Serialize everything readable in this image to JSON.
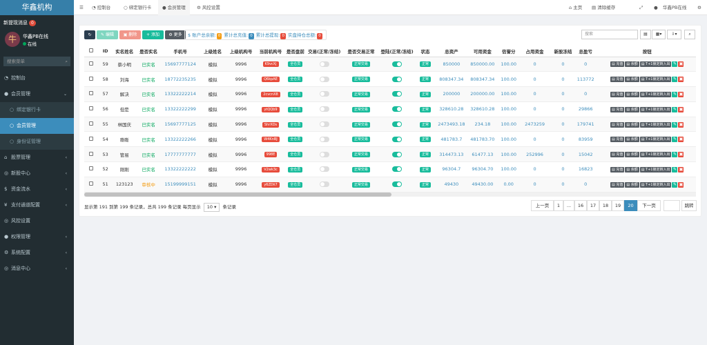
{
  "sidebar": {
    "logo": "华鑫机构",
    "notice": "新提现消息",
    "notice_count": "0",
    "user_name": "华鑫PB在线",
    "user_status": "在线",
    "search_placeholder": "搜索菜单",
    "menu": [
      {
        "label": "控制台",
        "icon": "gauge-icon"
      },
      {
        "label": "会员管理",
        "icon": "user-icon"
      },
      {
        "label": "绑定银行卡",
        "icon": "circle-icon"
      },
      {
        "label": "会员管理",
        "icon": "circle-icon"
      },
      {
        "label": "身份证管理",
        "icon": "circle-icon"
      },
      {
        "label": "股票管理",
        "icon": "bank-icon"
      },
      {
        "label": "新股中心",
        "icon": "circle-icon"
      },
      {
        "label": "资金流水",
        "icon": "dollar-icon"
      },
      {
        "label": "支付通道配置",
        "icon": "yen-icon"
      },
      {
        "label": "风控设置",
        "icon": "circle-icon"
      },
      {
        "label": "权限管理",
        "icon": "group-icon"
      },
      {
        "label": "系统配置",
        "icon": "gear-icon"
      },
      {
        "label": "消息中心",
        "icon": "circle-icon"
      }
    ]
  },
  "header": {
    "tabs": [
      "控制台",
      "绑定银行卡",
      "会员管理",
      "风控设置"
    ],
    "home": "主页",
    "clear_cache": "清除缓存",
    "admin": "华鑫PB在线"
  },
  "toolbar": {
    "edit": "编辑",
    "delete": "删除",
    "add": "添加",
    "more": "更多",
    "summary_label1": "账户总余额:",
    "summary_val1": "0",
    "summary_label2": "累计总充值:",
    "summary_val2": "0",
    "summary_label3": "累计总提现:",
    "summary_val3": "0",
    "summary_label4": "实盘持仓总额:",
    "summary_val4": "0",
    "search_placeholder": "搜索"
  },
  "table": {
    "headers": [
      "ID",
      "实名姓名",
      "是否实名",
      "手机号",
      "上级姓名",
      "上级机构号",
      "当前机构号",
      "是否盘前",
      "交易(正常/冻结)",
      "是否交易正常",
      "登陆(正常/冻结)",
      "状态",
      "总资产",
      "可用资金",
      "信誉分",
      "占用资金",
      "新股冻结",
      "总盈亏",
      "按钮"
    ],
    "rows": [
      {
        "id": "59",
        "name": "蔡小明",
        "verified": "已实名",
        "phone": "15697777124",
        "parent": "模拟",
        "parent_code": "9996",
        "code": "K9vcXj",
        "pre": "全仓员",
        "trade_ok": "正常交易",
        "status": "正常",
        "total": "850000",
        "avail": "850000.00",
        "credit": "100.00",
        "occupied": "0",
        "frozen": "0",
        "pnl": "0",
        "trade_on": false
      },
      {
        "id": "58",
        "name": "刘海",
        "verified": "已实名",
        "phone": "18772235235",
        "parent": "模拟",
        "parent_code": "9996",
        "code": "Q6kpAE",
        "pre": "全仓员",
        "trade_ok": "正常交易",
        "status": "正常",
        "total": "808347.34",
        "avail": "808347.34",
        "credit": "100.00",
        "occupied": "0",
        "frozen": "0",
        "pnl": "113772",
        "trade_on": false
      },
      {
        "id": "57",
        "name": "解决",
        "verified": "已实名",
        "phone": "13322222214",
        "parent": "模拟",
        "parent_code": "9996",
        "code": "2cvcnX8",
        "pre": "全仓员",
        "trade_ok": "正常交易",
        "status": "正常",
        "total": "200000",
        "avail": "200000.00",
        "credit": "100.00",
        "occupied": "0",
        "frozen": "0",
        "pnl": "0",
        "trade_on": false
      },
      {
        "id": "56",
        "name": "但是",
        "verified": "已实名",
        "phone": "13322222299",
        "parent": "模拟",
        "parent_code": "9996",
        "code": "ytQQb9",
        "pre": "全仓员",
        "trade_ok": "正常交易",
        "status": "正常",
        "total": "328610.28",
        "avail": "328610.28",
        "credit": "100.00",
        "occupied": "0",
        "frozen": "0",
        "pnl": "29866",
        "trade_on": false
      },
      {
        "id": "55",
        "name": "林国庆",
        "verified": "已实名",
        "phone": "15697777125",
        "parent": "模拟",
        "parent_code": "9996",
        "code": "ShrXDs",
        "pre": "全仓员",
        "trade_ok": "正常交易",
        "status": "正常",
        "total": "2473493.18",
        "avail": "234.18",
        "credit": "100.00",
        "occupied": "2473259",
        "frozen": "0",
        "pnl": "179741",
        "trade_on": false
      },
      {
        "id": "54",
        "name": "嘶嘶",
        "verified": "已实名",
        "phone": "13322222266",
        "parent": "模拟",
        "parent_code": "9996",
        "code": "W4KnBJ",
        "pre": "全仓员",
        "trade_ok": "正常交易",
        "status": "正常",
        "total": "481783.7",
        "avail": "481783.70",
        "credit": "100.00",
        "occupied": "0",
        "frozen": "0",
        "pnl": "83959",
        "trade_on": false
      },
      {
        "id": "53",
        "name": "管易",
        "verified": "已实名",
        "phone": "17777777777",
        "parent": "模拟",
        "parent_code": "9996",
        "code": "998E",
        "pre": "全仓员",
        "trade_ok": "正常交易",
        "status": "正常",
        "total": "314473.13",
        "avail": "61477.13",
        "credit": "100.00",
        "occupied": "252996",
        "frozen": "0",
        "pnl": "15042",
        "trade_on": false
      },
      {
        "id": "52",
        "name": "刚刚",
        "verified": "已实名",
        "phone": "13322222222",
        "parent": "模拟",
        "parent_code": "9996",
        "code": "V2wk3c",
        "pre": "全仓员",
        "trade_ok": "正常交易",
        "status": "正常",
        "total": "96304.7",
        "avail": "96304.70",
        "credit": "100.00",
        "occupied": "0",
        "frozen": "0",
        "pnl": "16823",
        "trade_on": false
      },
      {
        "id": "51",
        "name": "123123",
        "verified": "审核中",
        "phone": "15199999151",
        "parent": "模拟",
        "parent_code": "9996",
        "code": "y6ZDii7",
        "pre": "全仓员",
        "trade_ok": "正常交易",
        "status": "正常",
        "total": "49430",
        "avail": "49430.00",
        "credit": "0.00",
        "occupied": "0",
        "frozen": "0",
        "pnl": "0",
        "trade_on": false
      }
    ],
    "actions": [
      "充值",
      "余额",
      "T+1锁定转入出"
    ]
  },
  "footer": {
    "info": "显示第 191 到第 199 条记录，总共 199 条记录 每页显示",
    "page_size": "10",
    "info_suffix": "条记录",
    "pages": [
      "上一页",
      "1",
      "...",
      "16",
      "17",
      "18",
      "19",
      "20",
      "下一页"
    ],
    "current_page": "20",
    "goto": "跳转"
  }
}
